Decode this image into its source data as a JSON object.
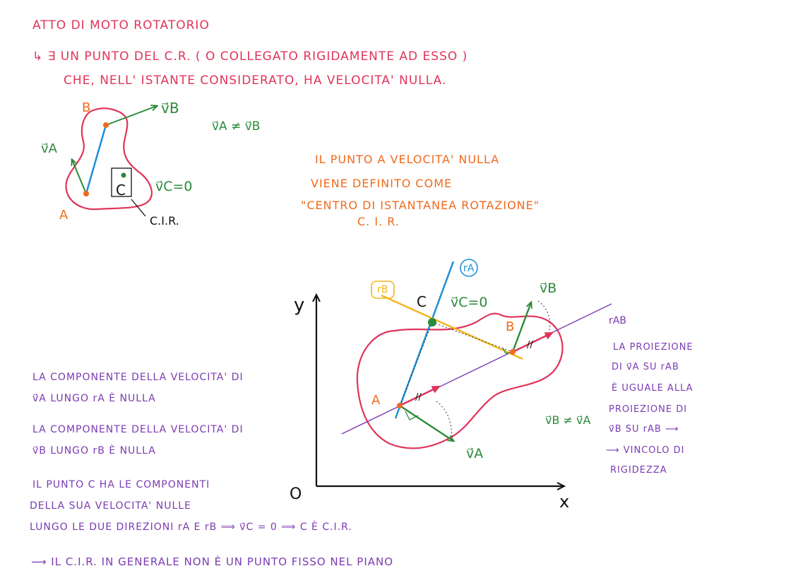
{
  "notes": {
    "title": "ATTO DI MOTO ROTATORIO",
    "line1": "↳ ∃ UN PUNTO DEL C.R. ( O COLLEGATO RIGIDAMENTE AD ESSO )",
    "line2": "CHE, NELL' ISTANTE CONSIDERATO, HA VELOCITA' NULLA.",
    "orange1": "IL PUNTO A VELOCITA' NULLA",
    "orange2": "VIENE DEFINITO COME",
    "orange3": "\"CENTRO DI ISTANTANEA ROTAZIONE\"",
    "orange4": "C. I. R.",
    "left1": "LA COMPONENTE DELLA VELOCITA' DI",
    "left2": "v⃗A LUNGO rA È NULLA",
    "left3": "LA COMPONENTE DELLA VELOCITA' DI",
    "left4": "v⃗B LUNGO rB È NULLA",
    "left5": "IL PUNTO C HA LE COMPONENTI",
    "left6": "DELLA SUA VELOCITA' NULLE",
    "left7": "LUNGO LE DUE DIREZIONI rA E rB ⟹ v⃗C = 0 ⟹ C È C.I.R.",
    "bottom": "⟶ IL C.I.R. IN GENERALE NON È UN PUNTO FISSO NEL PIANO",
    "right1": "LA PROIEZIONE",
    "right2": "DI v⃗A SU rAB",
    "right3": "È UGUALE ALLA",
    "right4": "PROIEZIONE DI",
    "right5": "v⃗B SU rAB ⟶",
    "right6": "⟶ VINCOLO DI",
    "right7": "RIGIDEZZA"
  },
  "sketch1": {
    "label_B": "B",
    "label_A": "A",
    "label_C": "C",
    "vB": "v⃗B",
    "vA": "v⃗A",
    "vC": "v⃗C=0",
    "ineq": "v⃗A ≠ v⃗B",
    "cir": "C.I.R."
  },
  "sketch2": {
    "axis_y": "y",
    "axis_x": "x",
    "origin": "O",
    "rA": "rA",
    "rB": "rB",
    "rAB": "rAB",
    "label_C": "C",
    "vC": "v⃗C=0",
    "vB": "v⃗B",
    "vA": "v⃗A",
    "label_A": "A",
    "label_B": "B",
    "ineq": "v⃗B ≠ v⃗A"
  },
  "colors": {
    "red": "#e0345a",
    "orange": "#f06a1c",
    "purple": "#7b3bb2",
    "green": "#2c8a3a",
    "blue": "#1f8fd6",
    "yellow": "#f2b61f"
  }
}
